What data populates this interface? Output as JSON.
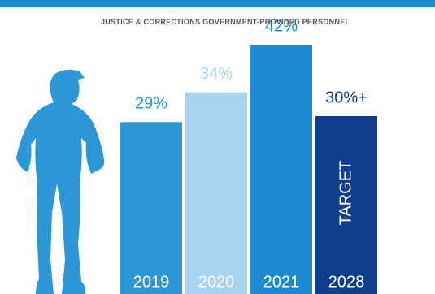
{
  "chart_data": {
    "type": "bar",
    "title": "JUSTICE & CORRECTIONS GOVERNMENT-PROVIDED PERSONNEL",
    "categories": [
      "2019",
      "2020",
      "2021",
      "2028"
    ],
    "values": [
      29,
      34,
      42,
      30
    ],
    "value_labels": [
      "29%",
      "34%",
      "42%",
      "30%+"
    ],
    "colors": [
      "#2b97d6",
      "#a7d3f1",
      "#1b8ad3",
      "#0f3e8e"
    ],
    "annotation": "TARGET"
  }
}
